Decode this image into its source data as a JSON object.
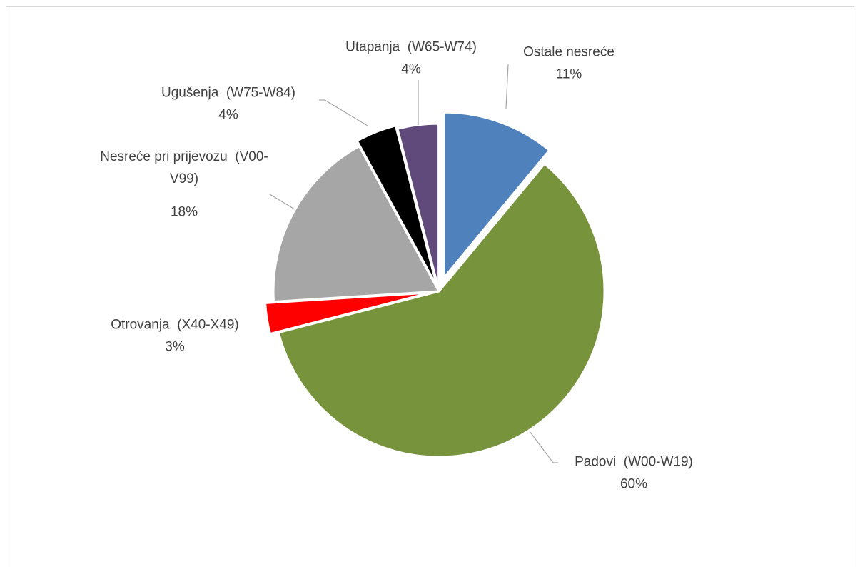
{
  "chart_data": {
    "type": "pie",
    "categories": [
      "Ostale nesreće",
      "Padovi  (W00-W19)",
      "Otrovanja  (X40-X49)",
      "Nesreće pri prijevozu  (V00-V99)",
      "Ugušenja  (W75-W84)",
      "Utapanja  (W65-W74)"
    ],
    "values": [
      11,
      60,
      3,
      18,
      4,
      4
    ],
    "value_labels": [
      "11%",
      "60%",
      "3%",
      "18%",
      "4%",
      "4%"
    ],
    "colors": [
      "#4f81bd",
      "#77933c",
      "#ff0000",
      "#a6a6a6",
      "#000000",
      "#604a7b"
    ]
  }
}
